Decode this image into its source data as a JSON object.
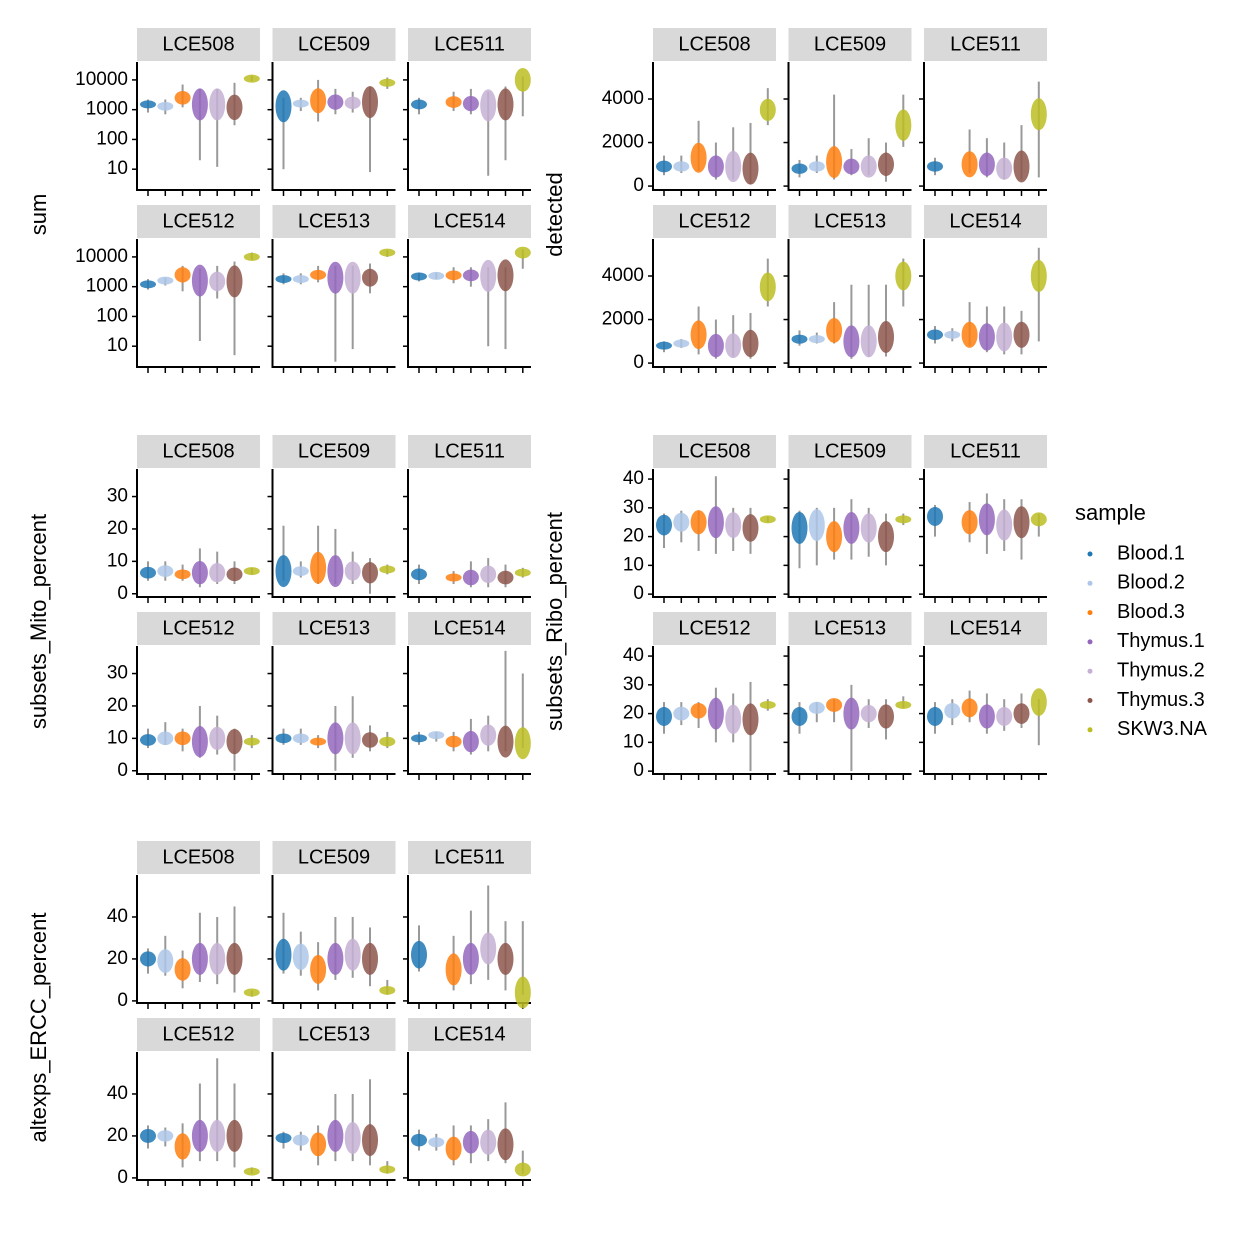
{
  "chart_data": [
    {
      "type": "violin",
      "ylabel": "sum",
      "log": true,
      "ylim": [
        2,
        40000
      ],
      "yticks": [
        10,
        100,
        1000,
        10000
      ],
      "facets": [
        {
          "title": "LCE508",
          "median": [
            1500,
            1300,
            2500,
            1500,
            1500,
            1200,
            11000
          ],
          "min": [
            800,
            700,
            1200,
            20,
            12,
            300,
            9000
          ],
          "max": [
            2200,
            2200,
            7000,
            5000,
            5000,
            8000,
            14000
          ]
        },
        {
          "title": "LCE509",
          "median": [
            1300,
            1600,
            2000,
            1800,
            1700,
            1800,
            8000
          ],
          "min": [
            10,
            900,
            400,
            700,
            800,
            8,
            5000
          ],
          "max": [
            2500,
            2500,
            10000,
            5000,
            4000,
            6000,
            12000
          ]
        },
        {
          "title": "LCE511",
          "median": [
            1500,
            null,
            1800,
            1600,
            1400,
            1500,
            10000
          ],
          "min": [
            700,
            null,
            900,
            700,
            6,
            20,
            600
          ],
          "max": [
            2500,
            null,
            4000,
            5000,
            4000,
            6000,
            13000
          ]
        },
        {
          "title": "LCE512",
          "median": [
            1200,
            1600,
            2500,
            1600,
            1500,
            1500,
            10000
          ],
          "min": [
            800,
            1100,
            700,
            15,
            400,
            5,
            8000
          ],
          "max": [
            1800,
            2000,
            5000,
            4000,
            5000,
            7000,
            14000
          ]
        },
        {
          "title": "LCE513",
          "median": [
            1800,
            1800,
            2500,
            2000,
            2000,
            2000,
            14000
          ],
          "min": [
            1200,
            1200,
            1400,
            3,
            8,
            600,
            10000
          ],
          "max": [
            2800,
            2800,
            5000,
            5000,
            5000,
            6000,
            17000
          ]
        },
        {
          "title": "LCE514",
          "median": [
            2200,
            2300,
            2400,
            2400,
            2300,
            2400,
            14000
          ],
          "min": [
            1500,
            1800,
            1300,
            1000,
            10,
            8,
            4000
          ],
          "max": [
            3000,
            3000,
            4500,
            4500,
            4500,
            4500,
            18000
          ]
        }
      ]
    },
    {
      "type": "violin",
      "ylabel": "detected",
      "log": false,
      "ylim": [
        -180,
        5700
      ],
      "yticks": [
        0,
        2000,
        4000
      ],
      "facets": [
        {
          "title": "LCE508",
          "median": [
            900,
            900,
            1300,
            900,
            900,
            800,
            3500
          ],
          "min": [
            500,
            600,
            700,
            300,
            300,
            100,
            2800
          ],
          "max": [
            1400,
            1400,
            3000,
            2000,
            2700,
            2900,
            4500
          ]
        },
        {
          "title": "LCE509",
          "median": [
            800,
            900,
            1100,
            900,
            900,
            1000,
            2800
          ],
          "min": [
            400,
            600,
            300,
            500,
            500,
            200,
            1800
          ],
          "max": [
            1200,
            1400,
            4200,
            1700,
            2200,
            2000,
            4200
          ]
        },
        {
          "title": "LCE511",
          "median": [
            900,
            null,
            1000,
            1000,
            800,
            900,
            3300
          ],
          "min": [
            500,
            null,
            600,
            400,
            300,
            300,
            400
          ],
          "max": [
            1300,
            null,
            2600,
            2200,
            2000,
            2800,
            4800
          ]
        },
        {
          "title": "LCE512",
          "median": [
            800,
            900,
            1300,
            800,
            800,
            900,
            3500
          ],
          "min": [
            500,
            700,
            400,
            200,
            300,
            200,
            2600
          ],
          "max": [
            1000,
            1100,
            2600,
            2000,
            2200,
            2300,
            4800
          ]
        },
        {
          "title": "LCE513",
          "median": [
            1100,
            1100,
            1500,
            1000,
            1000,
            1200,
            4000
          ],
          "min": [
            800,
            900,
            900,
            200,
            300,
            300,
            2600
          ],
          "max": [
            1500,
            1400,
            2800,
            3600,
            3600,
            3600,
            4800
          ]
        },
        {
          "title": "LCE514",
          "median": [
            1300,
            1300,
            1300,
            1200,
            1200,
            1300,
            4000
          ],
          "min": [
            900,
            1000,
            800,
            500,
            400,
            400,
            1000
          ],
          "max": [
            1700,
            1600,
            2800,
            2600,
            2600,
            2400,
            5300
          ]
        }
      ]
    },
    {
      "type": "violin",
      "ylabel": "subsets_Mito_percent",
      "log": false,
      "ylim": [
        -1,
        38.5
      ],
      "yticks": [
        0,
        10,
        20,
        30
      ],
      "facets": [
        {
          "title": "LCE508",
          "median": [
            6.5,
            7,
            6,
            6.5,
            6.5,
            6,
            7
          ],
          "min": [
            4,
            4,
            4,
            2,
            3,
            3,
            6
          ],
          "max": [
            10,
            10,
            9,
            14,
            13,
            10,
            8
          ]
        },
        {
          "title": "LCE509",
          "median": [
            7,
            7,
            8,
            7,
            7,
            6.5,
            7.5
          ],
          "min": [
            4,
            5,
            3,
            3,
            3,
            0,
            6
          ],
          "max": [
            21,
            10,
            21,
            20,
            13,
            11,
            9
          ]
        },
        {
          "title": "LCE511",
          "median": [
            6,
            null,
            5,
            5,
            6,
            5,
            6.5
          ],
          "min": [
            3,
            null,
            3,
            2,
            2,
            2,
            5
          ],
          "max": [
            9,
            null,
            7,
            10,
            11,
            9,
            8
          ]
        },
        {
          "title": "LCE512",
          "median": [
            9.5,
            10,
            10,
            9,
            10,
            9,
            9
          ],
          "min": [
            7,
            8,
            6,
            4,
            5,
            0,
            7
          ],
          "max": [
            13,
            15,
            13,
            20,
            17,
            13,
            11
          ]
        },
        {
          "title": "LCE513",
          "median": [
            10,
            10,
            9,
            10,
            10,
            9.5,
            9
          ],
          "min": [
            8,
            8,
            7,
            0,
            4,
            6,
            7
          ],
          "max": [
            13,
            13,
            11,
            20,
            23,
            14,
            12
          ]
        },
        {
          "title": "LCE514",
          "median": [
            10,
            11,
            9,
            9,
            11,
            9,
            8.5
          ],
          "min": [
            8,
            9,
            6,
            5,
            6,
            6,
            7
          ],
          "max": [
            12,
            12,
            12,
            16,
            17,
            37,
            30
          ]
        }
      ]
    },
    {
      "type": "violin",
      "ylabel": "subsets_Ribo_percent",
      "log": false,
      "ylim": [
        -1,
        43.5
      ],
      "yticks": [
        0,
        10,
        20,
        30,
        40
      ],
      "facets": [
        {
          "title": "LCE508",
          "median": [
            24,
            25,
            25,
            25,
            24,
            23,
            26
          ],
          "min": [
            16,
            18,
            15,
            14,
            15,
            14,
            25
          ],
          "max": [
            28,
            29,
            29,
            41,
            30,
            30,
            27
          ]
        },
        {
          "title": "LCE509",
          "median": [
            23,
            24,
            20,
            23,
            23,
            20,
            26
          ],
          "min": [
            9,
            10,
            12,
            12,
            13,
            10,
            24
          ],
          "max": [
            29,
            30,
            30,
            33,
            30,
            28,
            28
          ]
        },
        {
          "title": "LCE511",
          "median": [
            27,
            null,
            25,
            26,
            24,
            25,
            26
          ],
          "min": [
            20,
            null,
            18,
            14,
            15,
            12,
            20
          ],
          "max": [
            31,
            null,
            32,
            35,
            33,
            33,
            28
          ]
        },
        {
          "title": "LCE512",
          "median": [
            19,
            20,
            21,
            20,
            18,
            18,
            23
          ],
          "min": [
            13,
            16,
            15,
            10,
            10,
            0,
            21
          ],
          "max": [
            24,
            24,
            24,
            29,
            27,
            31,
            25
          ]
        },
        {
          "title": "LCE513",
          "median": [
            19,
            22,
            23,
            20,
            20,
            19,
            23
          ],
          "min": [
            13,
            17,
            17,
            0,
            15,
            11,
            22
          ],
          "max": [
            24,
            24,
            25,
            30,
            25,
            25,
            26
          ]
        },
        {
          "title": "LCE514",
          "median": [
            19,
            21,
            22,
            19,
            19,
            20,
            24
          ],
          "min": [
            13,
            16,
            17,
            13,
            14,
            15,
            9
          ],
          "max": [
            24,
            25,
            28,
            27,
            25,
            27,
            25
          ]
        }
      ]
    },
    {
      "type": "violin",
      "ylabel": "altexps_ERCC_percent",
      "log": false,
      "ylim": [
        -1,
        60
      ],
      "yticks": [
        0,
        20,
        40
      ],
      "facets": [
        {
          "title": "LCE508",
          "median": [
            20,
            19,
            15,
            20,
            20,
            20,
            4
          ],
          "min": [
            13,
            12,
            6,
            9,
            8,
            4,
            2
          ],
          "max": [
            25,
            31,
            24,
            42,
            40,
            45,
            5
          ]
        },
        {
          "title": "LCE509",
          "median": [
            22,
            21,
            15,
            20,
            22,
            20,
            5
          ],
          "min": [
            13,
            12,
            5,
            10,
            11,
            7,
            3
          ],
          "max": [
            42,
            33,
            28,
            40,
            40,
            35,
            10
          ]
        },
        {
          "title": "LCE511",
          "median": [
            22,
            null,
            15,
            20,
            25,
            20,
            4
          ],
          "min": [
            14,
            null,
            5,
            8,
            10,
            5,
            3
          ],
          "max": [
            36,
            null,
            31,
            43,
            55,
            38,
            38
          ]
        },
        {
          "title": "LCE512",
          "median": [
            20,
            20,
            15,
            20,
            20,
            20,
            3
          ],
          "min": [
            14,
            15,
            5,
            8,
            8,
            5,
            2
          ],
          "max": [
            25,
            24,
            26,
            45,
            57,
            45,
            5
          ]
        },
        {
          "title": "LCE513",
          "median": [
            19,
            18,
            16,
            20,
            19,
            18,
            4
          ],
          "min": [
            14,
            13,
            6,
            8,
            8,
            6,
            2
          ],
          "max": [
            22,
            22,
            25,
            40,
            40,
            47,
            8
          ]
        },
        {
          "title": "LCE514",
          "median": [
            18,
            17,
            14,
            17,
            17,
            16,
            4
          ],
          "min": [
            13,
            13,
            6,
            7,
            8,
            7,
            2
          ],
          "max": [
            23,
            21,
            25,
            25,
            28,
            36,
            13
          ]
        }
      ]
    }
  ],
  "legend": {
    "title": "sample",
    "names": [
      "Blood.1",
      "Blood.2",
      "Blood.3",
      "Thymus.1",
      "Thymus.2",
      "Thymus.3",
      "SKW3.NA"
    ],
    "colors": [
      "#1f77b4",
      "#aec7e8",
      "#ff7f0e",
      "#9467bd",
      "#c5b0d5",
      "#8c564b",
      "#bcbd22"
    ]
  }
}
